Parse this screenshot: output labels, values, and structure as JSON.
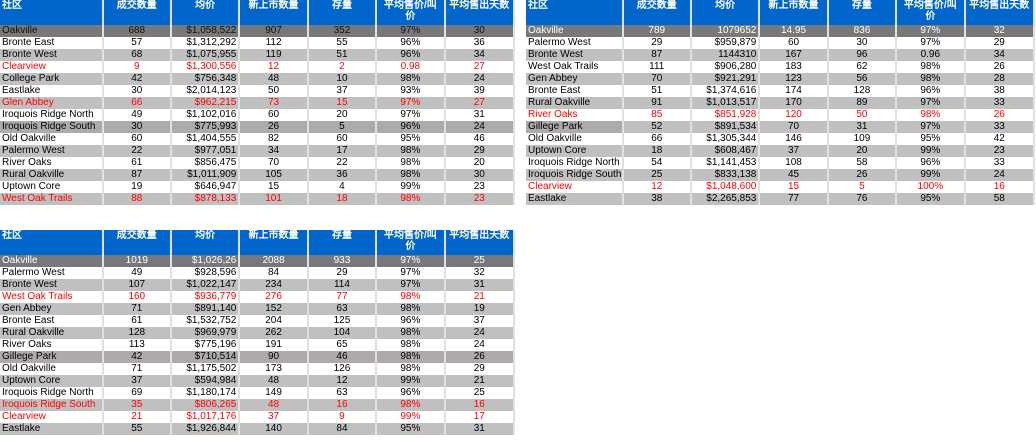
{
  "headers": [
    "社区",
    "成交数量",
    "均价",
    "新上市数量",
    "存量",
    "平均售价/叫价",
    "平均售出天数"
  ],
  "tables": [
    {
      "rows": [
        [
          "Oakville",
          "688",
          "$1,058,522",
          "907",
          "352",
          "97%",
          "30"
        ],
        [
          "Bronte East",
          "57",
          "$1,312,292",
          "112",
          "55",
          "96%",
          "36"
        ],
        [
          "Bronte West",
          "68",
          "$1,075,955",
          "119",
          "51",
          "96%",
          "34"
        ],
        [
          "Clearview",
          "9",
          "$1,300,556",
          "12",
          "2",
          "0.98",
          "27"
        ],
        [
          "College Park",
          "42",
          "$756,348",
          "48",
          "10",
          "98%",
          "24"
        ],
        [
          "Eastlake",
          "30",
          "$2,014,123",
          "50",
          "37",
          "93%",
          "39"
        ],
        [
          "Glen Abbey",
          "66",
          "$962,215",
          "73",
          "15",
          "97%",
          "27"
        ],
        [
          "Iroquois Ridge North",
          "49",
          "$1,102,016",
          "60",
          "20",
          "97%",
          "31"
        ],
        [
          "Iroquois Ridge South",
          "30",
          "$775,993",
          "26",
          "5",
          "96%",
          "24"
        ],
        [
          "Old Oakville",
          "60",
          "$1,404,555",
          "82",
          "60",
          "95%",
          "46"
        ],
        [
          "Palermo West",
          "22",
          "$977,051",
          "34",
          "17",
          "98%",
          "29"
        ],
        [
          "River Oaks",
          "61",
          "$856,475",
          "70",
          "22",
          "98%",
          "20"
        ],
        [
          "Rural Oakville",
          "87",
          "$1,011,909",
          "105",
          "36",
          "98%",
          "30"
        ],
        [
          "Uptown Core",
          "19",
          "$646,947",
          "15",
          "4",
          "99%",
          "23"
        ],
        [
          "West Oak Trails",
          "88",
          "$878,133",
          "101",
          "18",
          "98%",
          "23"
        ]
      ],
      "red_rows": [
        3,
        6,
        14
      ],
      "dark_rows": [
        8
      ],
      "shade_first": []
    },
    {
      "rows": [
        [
          "Oakville",
          "789",
          "1079652",
          "14.95",
          "836",
          "97%",
          "32"
        ],
        [
          "Palermo West",
          "29",
          "$959,879",
          "60",
          "30",
          "97%",
          "29"
        ],
        [
          "Bronte West",
          "87",
          "1144310",
          "167",
          "96",
          "0.96",
          "34"
        ],
        [
          "West Oak Trails",
          "111",
          "$906,280",
          "183",
          "62",
          "98%",
          "26"
        ],
        [
          "Gen Abbey",
          "70",
          "$921,291",
          "123",
          "56",
          "98%",
          "28"
        ],
        [
          "Bronte East",
          "51",
          "$1,374,616",
          "174",
          "128",
          "96%",
          "38"
        ],
        [
          "Rural Oakville",
          "91",
          "$1,013,517",
          "170",
          "89",
          "97%",
          "33"
        ],
        [
          "River Oaks",
          "85",
          "$851,928",
          "120",
          "50",
          "98%",
          "26"
        ],
        [
          "Gillege Park",
          "52",
          "$891,534",
          "70",
          "31",
          "97%",
          "33"
        ],
        [
          "Old Oakville",
          "66",
          "$1,305,344",
          "146",
          "109",
          "95%",
          "42"
        ],
        [
          "Uptown Core",
          "18",
          "$608,467",
          "37",
          "20",
          "99%",
          "23"
        ],
        [
          "Iroquois Ridge North",
          "54",
          "$1,141,453",
          "108",
          "58",
          "96%",
          "33"
        ],
        [
          "Iroquois Ridge South",
          "25",
          "$833,138",
          "45",
          "26",
          "99%",
          "24"
        ],
        [
          "Clearview",
          "12",
          "$1,048,600",
          "15",
          "5",
          "100%",
          "16"
        ],
        [
          "Eastlake",
          "38",
          "$2,265,853",
          "77",
          "76",
          "95%",
          "58"
        ]
      ],
      "red_rows": [
        7,
        13
      ],
      "dark_rows": [],
      "shade_first": [
        8
      ]
    },
    {
      "rows": [
        [
          "Oakville",
          "1019",
          "$1,026,26",
          "2088",
          "933",
          "97%",
          "25"
        ],
        [
          "Palermo West",
          "49",
          "$928,596",
          "84",
          "29",
          "97%",
          "32"
        ],
        [
          "Bronte West",
          "107",
          "$1,022,147",
          "234",
          "114",
          "97%",
          "31"
        ],
        [
          "West Oak Trails",
          "160",
          "$936,779",
          "276",
          "77",
          "98%",
          "21"
        ],
        [
          "Gen Abbey",
          "71",
          "$891,140",
          "152",
          "63",
          "98%",
          "19"
        ],
        [
          "Bronte East",
          "61",
          "$1,532,752",
          "204",
          "125",
          "96%",
          "37"
        ],
        [
          "Rural Oakville",
          "128",
          "$969,979",
          "262",
          "104",
          "98%",
          "24"
        ],
        [
          "River Oaks",
          "113",
          "$775,196",
          "191",
          "65",
          "98%",
          "24"
        ],
        [
          "Gillege Park",
          "42",
          "$710,514",
          "90",
          "46",
          "98%",
          "26"
        ],
        [
          "Old Oakville",
          "71",
          "$1,175,502",
          "173",
          "126",
          "98%",
          "29"
        ],
        [
          "Uptown Core",
          "37",
          "$594,984",
          "48",
          "12",
          "99%",
          "21"
        ],
        [
          "Iroquois Ridge North",
          "69",
          "$1,180,174",
          "149",
          "63",
          "96%",
          "25"
        ],
        [
          "Iroquois Ridge South",
          "35",
          "$806,265",
          "48",
          "16",
          "98%",
          "16"
        ],
        [
          "Clearview",
          "21",
          "$1,017,176",
          "37",
          "9",
          "99%",
          "17"
        ],
        [
          "Eastlake",
          "55",
          "$1,926,844",
          "140",
          "84",
          "95%",
          "31"
        ]
      ],
      "red_rows": [
        3,
        12,
        13
      ],
      "dark_rows": [
        8
      ],
      "shade_first": []
    }
  ]
}
